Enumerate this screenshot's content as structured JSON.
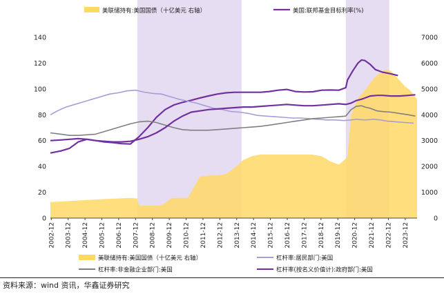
{
  "source": "资料来源：wind 资讯，华鑫证券研究",
  "colors": {
    "fed_holdings": "#FFD966",
    "fed_rate": "#7030A0",
    "household_leverage": "#A89CD6",
    "nonfin_leverage": "#7F7F7F",
    "gov_leverage": "#7030A0",
    "shade": "#E6DDF2"
  },
  "chart_data": {
    "type": "line",
    "x_categories": [
      "2002-12",
      "2003-12",
      "2004-12",
      "2005-12",
      "2006-12",
      "2007-12",
      "2008-12",
      "2009-12",
      "2010-12",
      "2011-12",
      "2012-12",
      "2013-12",
      "2014-12",
      "2015-12",
      "2016-12",
      "2017-12",
      "2018-12",
      "2019-12",
      "2020-12",
      "2021-12",
      "2022-12",
      "2023-12"
    ],
    "y_left_ticks": [
      0,
      20,
      40,
      60,
      80,
      100,
      120,
      140
    ],
    "y_left_range": [
      0,
      140
    ],
    "y_right_ticks": [
      0,
      1000,
      2000,
      3000,
      4000,
      5000,
      6000,
      7000
    ],
    "y_right_range": [
      0,
      7000
    ],
    "x_range": [
      2002.9,
      2024.0
    ],
    "shaded_periods": [
      [
        2007.9,
        2013.9
      ],
      [
        2019.9,
        2022.4
      ]
    ],
    "top_legend": [
      {
        "label": "美联储持有:美国国债（十亿美元 右轴）",
        "kind": "area",
        "color": "#FFD966"
      },
      {
        "label": "美国:联邦基金目标利率(%)",
        "kind": "line",
        "color": "#7030A0"
      }
    ],
    "bottom_legend": [
      {
        "label": "美联储持有:美国国债（十亿美元 右轴）",
        "kind": "area",
        "color": "#FFD966"
      },
      {
        "label": "杠杆率:居民部门:美国",
        "kind": "line",
        "color": "#A89CD6"
      },
      {
        "label": "杠杆率:非金融企业部门:美国",
        "kind": "line",
        "color": "#7F7F7F"
      },
      {
        "label": "杠杆率(按名义价值计):政府部门:美国",
        "kind": "line",
        "color": "#7030A0"
      }
    ],
    "series": [
      {
        "name": "美联储持有:美国国债（十亿美元 右轴）",
        "type": "area",
        "axis": "right",
        "x": [
          2002.9,
          2003.5,
          2004.5,
          2005.5,
          2006.5,
          2007.5,
          2007.9,
          2008.0,
          2008.4,
          2008.9,
          2009.3,
          2009.9,
          2010.4,
          2010.8,
          2011.0,
          2011.5,
          2012.0,
          2012.5,
          2013.0,
          2013.5,
          2014.0,
          2014.5,
          2015.0,
          2016.0,
          2017.0,
          2017.9,
          2018.5,
          2019.0,
          2019.5,
          2019.9,
          2020.0,
          2020.2,
          2020.6,
          2021.0,
          2021.5,
          2021.9,
          2022.2,
          2022.5,
          2022.9,
          2023.3,
          2023.6,
          2024.0
        ],
        "y": [
          620,
          640,
          680,
          720,
          750,
          780,
          760,
          480,
          480,
          480,
          500,
          780,
          780,
          780,
          1000,
          1600,
          1650,
          1650,
          1700,
          1950,
          2250,
          2400,
          2460,
          2460,
          2460,
          2460,
          2400,
          2200,
          2070,
          2300,
          2400,
          4000,
          4650,
          4950,
          5400,
          5650,
          5750,
          5700,
          5400,
          5100,
          4950,
          4600
        ]
      },
      {
        "name": "美国:联邦基金目标利率(%)",
        "type": "line",
        "axis": "right",
        "x": [
          2002.9,
          2003.5,
          2004.0,
          2004.5,
          2005.0,
          2005.5,
          2006.0,
          2006.5,
          2007.0,
          2007.5,
          2008.0,
          2008.5,
          2009.0,
          2009.5,
          2010.0,
          2010.5,
          2011.0,
          2011.5,
          2012.0,
          2012.5,
          2013.0,
          2013.5,
          2014.0,
          2015.0,
          2015.5,
          2016.0,
          2016.5,
          2017.0,
          2017.5,
          2018.0,
          2018.5,
          2019.0,
          2019.5,
          2019.9,
          2020.0,
          2020.3,
          2020.6,
          2020.8,
          2021.0,
          2021.3,
          2021.6,
          2022.0,
          2022.4,
          2022.9
        ],
        "y": [
          2520,
          2600,
          2700,
          2950,
          3050,
          3000,
          2950,
          2920,
          2880,
          2870,
          3150,
          3500,
          3900,
          4200,
          4380,
          4480,
          4560,
          4650,
          4730,
          4800,
          4850,
          4870,
          4870,
          4870,
          4900,
          4950,
          4980,
          4900,
          4880,
          4890,
          4950,
          4960,
          4950,
          5050,
          5350,
          5700,
          6000,
          6120,
          6100,
          5950,
          5750,
          5650,
          5600,
          5520
        ]
      },
      {
        "name": "杠杆率:居民部门:美国",
        "type": "line",
        "axis": "left",
        "x": [
          2002.9,
          2003.3,
          2003.8,
          2004.3,
          2004.8,
          2005.3,
          2005.8,
          2006.3,
          2006.8,
          2007.3,
          2007.8,
          2008.3,
          2008.8,
          2009.3,
          2009.8,
          2010.3,
          2010.8,
          2011.3,
          2011.8,
          2012.3,
          2012.8,
          2013.3,
          2013.8,
          2014.3,
          2014.8,
          2015.3,
          2015.8,
          2016.3,
          2016.8,
          2017.3,
          2017.8,
          2018.3,
          2018.8,
          2019.3,
          2019.8,
          2020.2,
          2020.5,
          2021.0,
          2021.5,
          2021.9,
          2022.3,
          2022.8,
          2023.3,
          2023.8
        ],
        "y": [
          80,
          83,
          86,
          88,
          90,
          92,
          94,
          96,
          97,
          98.5,
          99,
          97.5,
          96.5,
          96,
          94,
          92,
          90.5,
          89,
          87,
          85,
          84,
          82.5,
          82,
          81,
          79.5,
          79,
          78.5,
          78,
          77.5,
          77.5,
          77,
          76.5,
          76,
          76,
          75.5,
          76,
          76.5,
          76,
          76.5,
          76,
          75,
          74.5,
          74,
          73.5
        ]
      },
      {
        "name": "杠杆率:非金融企业部门:美国",
        "type": "line",
        "axis": "left",
        "x": [
          2002.9,
          2003.5,
          2004.0,
          2004.5,
          2005.0,
          2005.5,
          2006.0,
          2006.5,
          2007.0,
          2007.5,
          2008.0,
          2008.5,
          2009.0,
          2009.5,
          2010.0,
          2010.5,
          2011.0,
          2011.5,
          2012.0,
          2012.5,
          2013.0,
          2013.5,
          2014.0,
          2014.5,
          2015.0,
          2015.5,
          2016.0,
          2016.5,
          2017.0,
          2017.5,
          2018.0,
          2018.5,
          2019.0,
          2019.5,
          2019.9,
          2020.2,
          2020.5,
          2020.8,
          2021.0,
          2021.3,
          2021.7,
          2022.0,
          2022.5,
          2023.0,
          2023.5,
          2023.9
        ],
        "y": [
          66,
          65,
          64,
          64,
          64.5,
          65,
          67,
          69,
          71,
          73,
          74.5,
          75,
          74,
          72,
          70,
          68.5,
          68,
          68,
          68,
          68.5,
          69,
          69.5,
          70,
          70.5,
          71,
          72,
          73,
          74,
          75,
          76,
          77,
          77.5,
          78,
          78.5,
          79,
          84,
          86.5,
          87,
          86,
          85,
          83,
          82.5,
          82,
          81,
          80,
          79
        ]
      },
      {
        "name": "杠杆率(按名义价值计):政府部门:美国",
        "type": "line",
        "axis": "left",
        "x": [
          2002.9,
          2003.5,
          2004.0,
          2004.5,
          2005.0,
          2005.5,
          2006.0,
          2006.5,
          2007.0,
          2007.5,
          2008.0,
          2008.5,
          2009.0,
          2009.5,
          2010.0,
          2010.5,
          2011.0,
          2011.5,
          2012.0,
          2012.5,
          2013.0,
          2013.5,
          2014.0,
          2014.5,
          2015.0,
          2015.5,
          2016.0,
          2016.5,
          2017.0,
          2017.5,
          2018.0,
          2018.5,
          2019.0,
          2019.5,
          2019.9,
          2020.2,
          2020.5,
          2020.8,
          2021.0,
          2021.3,
          2021.7,
          2022.0,
          2022.5,
          2023.0,
          2023.5,
          2023.9
        ],
        "y": [
          60,
          60.5,
          61,
          61.5,
          61,
          60,
          59.5,
          59,
          59,
          59.5,
          61,
          63,
          66,
          70,
          75,
          79,
          82,
          83,
          84,
          84.5,
          85,
          85.5,
          86,
          86,
          86.5,
          87,
          87.5,
          88,
          87.5,
          87,
          87,
          87.5,
          88,
          88.5,
          88,
          89,
          91,
          92,
          93,
          94.5,
          95,
          95,
          94.5,
          94.5,
          95,
          95.5
        ]
      }
    ]
  }
}
